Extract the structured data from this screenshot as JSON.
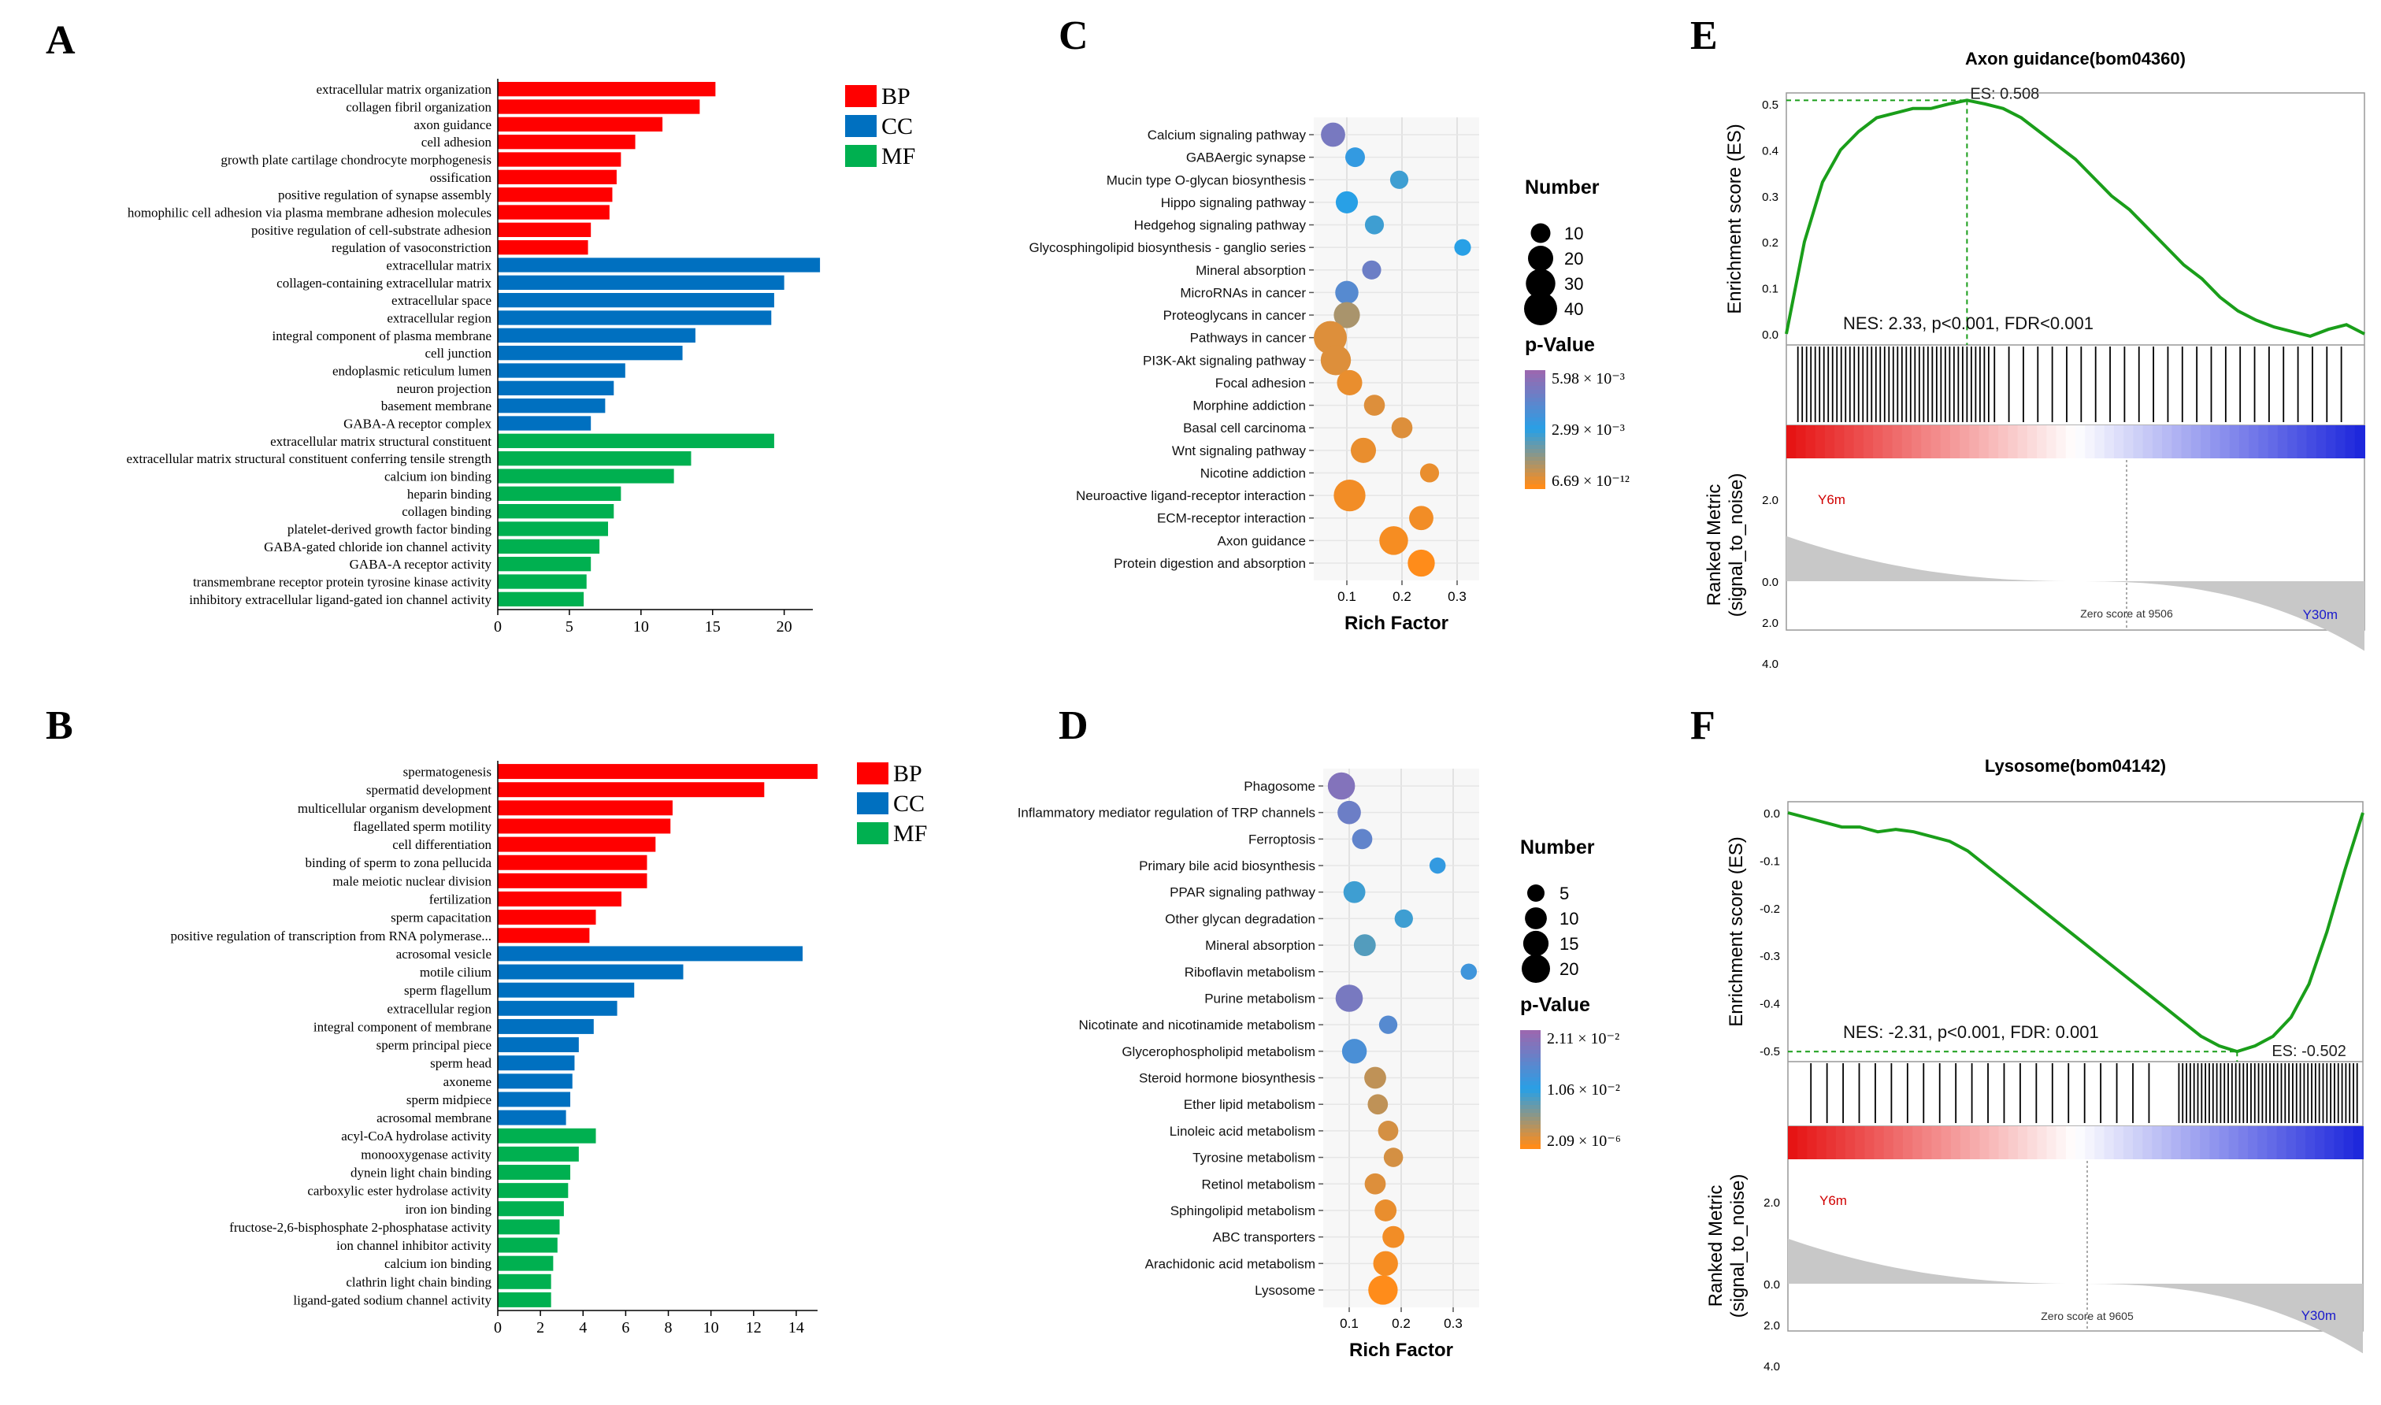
{
  "panels": {
    "A": "A",
    "B": "B",
    "C": "C",
    "D": "D",
    "E": "E",
    "F": "F"
  },
  "colors": {
    "BP": "#ff0000",
    "CC": "#0070c0",
    "MF": "#00b050",
    "gsea_line": "#1a9e1a",
    "gray": "#c8c8c8"
  },
  "legend_go": [
    {
      "key": "BP",
      "label": "BP"
    },
    {
      "key": "CC",
      "label": "CC"
    },
    {
      "key": "MF",
      "label": "MF"
    }
  ],
  "chart_data": [
    {
      "id": "A",
      "type": "bar",
      "orientation": "horizontal",
      "xlim": [
        0,
        22
      ],
      "xticks": [
        0,
        5,
        10,
        15,
        20
      ],
      "categories": [
        {
          "label": "extracellular matrix organization",
          "value": 15.2,
          "group": "BP"
        },
        {
          "label": "collagen fibril organization",
          "value": 14.1,
          "group": "BP"
        },
        {
          "label": "axon guidance",
          "value": 11.5,
          "group": "BP"
        },
        {
          "label": "cell adhesion",
          "value": 9.6,
          "group": "BP"
        },
        {
          "label": "growth plate cartilage chondrocyte morphogenesis",
          "value": 8.6,
          "group": "BP"
        },
        {
          "label": "ossification",
          "value": 8.3,
          "group": "BP"
        },
        {
          "label": "positive regulation of synapse assembly",
          "value": 8.0,
          "group": "BP"
        },
        {
          "label": "homophilic cell adhesion via plasma membrane adhesion molecules",
          "value": 7.8,
          "group": "BP"
        },
        {
          "label": "positive regulation of cell-substrate adhesion",
          "value": 6.5,
          "group": "BP"
        },
        {
          "label": "regulation of vasoconstriction",
          "value": 6.3,
          "group": "BP"
        },
        {
          "label": "extracellular matrix",
          "value": 22.5,
          "group": "CC"
        },
        {
          "label": "collagen-containing extracellular matrix",
          "value": 20.0,
          "group": "CC"
        },
        {
          "label": "extracellular space",
          "value": 19.3,
          "group": "CC"
        },
        {
          "label": "extracellular region",
          "value": 19.1,
          "group": "CC"
        },
        {
          "label": "integral component of plasma membrane",
          "value": 13.8,
          "group": "CC"
        },
        {
          "label": "cell junction",
          "value": 12.9,
          "group": "CC"
        },
        {
          "label": "endoplasmic reticulum lumen",
          "value": 8.9,
          "group": "CC"
        },
        {
          "label": "neuron projection",
          "value": 8.1,
          "group": "CC"
        },
        {
          "label": "basement membrane",
          "value": 7.5,
          "group": "CC"
        },
        {
          "label": "GABA-A receptor complex",
          "value": 6.5,
          "group": "CC"
        },
        {
          "label": "extracellular matrix structural constituent",
          "value": 19.3,
          "group": "MF"
        },
        {
          "label": "extracellular matrix structural constituent conferring tensile strength",
          "value": 13.5,
          "group": "MF"
        },
        {
          "label": "calcium ion binding",
          "value": 12.3,
          "group": "MF"
        },
        {
          "label": "heparin binding",
          "value": 8.6,
          "group": "MF"
        },
        {
          "label": "collagen binding",
          "value": 8.1,
          "group": "MF"
        },
        {
          "label": "platelet-derived growth factor binding",
          "value": 7.7,
          "group": "MF"
        },
        {
          "label": "GABA-gated chloride ion channel activity",
          "value": 7.1,
          "group": "MF"
        },
        {
          "label": "GABA-A receptor activity",
          "value": 6.5,
          "group": "MF"
        },
        {
          "label": "transmembrane receptor protein tyrosine kinase activity",
          "value": 6.2,
          "group": "MF"
        },
        {
          "label": "inhibitory extracellular ligand-gated ion channel activity",
          "value": 6.0,
          "group": "MF"
        }
      ]
    },
    {
      "id": "B",
      "type": "bar",
      "orientation": "horizontal",
      "xlim": [
        0,
        15
      ],
      "xticks": [
        0,
        2,
        4,
        6,
        8,
        10,
        12,
        14
      ],
      "categories": [
        {
          "label": "spermatogenesis",
          "value": 15.0,
          "group": "BP"
        },
        {
          "label": "spermatid development",
          "value": 12.5,
          "group": "BP"
        },
        {
          "label": "multicellular organism development",
          "value": 8.2,
          "group": "BP"
        },
        {
          "label": "flagellated sperm motility",
          "value": 8.1,
          "group": "BP"
        },
        {
          "label": "cell differentiation",
          "value": 7.4,
          "group": "BP"
        },
        {
          "label": "binding of sperm to zona pellucida",
          "value": 7.0,
          "group": "BP"
        },
        {
          "label": "male meiotic nuclear division",
          "value": 7.0,
          "group": "BP"
        },
        {
          "label": "fertilization",
          "value": 5.8,
          "group": "BP"
        },
        {
          "label": "sperm capacitation",
          "value": 4.6,
          "group": "BP"
        },
        {
          "label": "positive regulation of transcription from RNA polymerase...",
          "value": 4.3,
          "group": "BP"
        },
        {
          "label": "acrosomal vesicle",
          "value": 14.3,
          "group": "CC"
        },
        {
          "label": "motile cilium",
          "value": 8.7,
          "group": "CC"
        },
        {
          "label": "sperm flagellum",
          "value": 6.4,
          "group": "CC"
        },
        {
          "label": "extracellular region",
          "value": 5.6,
          "group": "CC"
        },
        {
          "label": "integral component of membrane",
          "value": 4.5,
          "group": "CC"
        },
        {
          "label": "sperm principal piece",
          "value": 3.8,
          "group": "CC"
        },
        {
          "label": "sperm head",
          "value": 3.6,
          "group": "CC"
        },
        {
          "label": "axoneme",
          "value": 3.5,
          "group": "CC"
        },
        {
          "label": "sperm midpiece",
          "value": 3.4,
          "group": "CC"
        },
        {
          "label": "acrosomal membrane",
          "value": 3.2,
          "group": "CC"
        },
        {
          "label": "acyl-CoA hydrolase activity",
          "value": 4.6,
          "group": "MF"
        },
        {
          "label": "monooxygenase activity",
          "value": 3.8,
          "group": "MF"
        },
        {
          "label": "dynein light chain binding",
          "value": 3.4,
          "group": "MF"
        },
        {
          "label": "carboxylic ester hydrolase activity",
          "value": 3.3,
          "group": "MF"
        },
        {
          "label": "iron ion binding",
          "value": 3.1,
          "group": "MF"
        },
        {
          "label": "fructose-2,6-bisphosphate 2-phosphatase activity",
          "value": 2.9,
          "group": "MF"
        },
        {
          "label": "ion channel inhibitor activity",
          "value": 2.8,
          "group": "MF"
        },
        {
          "label": "calcium ion binding",
          "value": 2.6,
          "group": "MF"
        },
        {
          "label": "clathrin light chain binding",
          "value": 2.5,
          "group": "MF"
        },
        {
          "label": "ligand-gated sodium channel activity",
          "value": 2.5,
          "group": "MF"
        }
      ]
    },
    {
      "id": "C",
      "type": "scatter",
      "xlabel": "Rich Factor",
      "xlim": [
        0.04,
        0.34
      ],
      "xticks": [
        0.1,
        0.2,
        0.3
      ],
      "size_title": "Number",
      "size_legend": [
        10,
        20,
        30,
        40
      ],
      "color_title": "p-Value",
      "color_ticks": [
        "5.98 × 10⁻³",
        "2.99 × 10⁻³",
        "6.69 × 10⁻¹²"
      ],
      "points": [
        {
          "label": "Calcium signaling pathway",
          "rich": 0.075,
          "number": 18,
          "pnorm": 0.15
        },
        {
          "label": "GABAergic synapse",
          "rich": 0.115,
          "number": 10,
          "pnorm": 0.45
        },
        {
          "label": "Mucin type O-glycan biosynthesis",
          "rich": 0.195,
          "number": 8,
          "pnorm": 0.55
        },
        {
          "label": "Hippo signaling pathway",
          "rich": 0.1,
          "number": 14,
          "pnorm": 0.5
        },
        {
          "label": "Hedgehog signaling pathway",
          "rich": 0.15,
          "number": 9,
          "pnorm": 0.55
        },
        {
          "label": "Glycosphingolipid biosynthesis - ganglio series",
          "rich": 0.31,
          "number": 6,
          "pnorm": 0.5
        },
        {
          "label": "Mineral absorption",
          "rich": 0.145,
          "number": 9,
          "pnorm": 0.2
        },
        {
          "label": "MicroRNAs in cancer",
          "rich": 0.1,
          "number": 16,
          "pnorm": 0.3
        },
        {
          "label": "Proteoglycans in cancer",
          "rich": 0.1,
          "number": 22,
          "pnorm": 0.8
        },
        {
          "label": "Pathways in cancer",
          "rich": 0.07,
          "number": 40,
          "pnorm": 0.92
        },
        {
          "label": "PI3K-Akt signaling pathway",
          "rich": 0.08,
          "number": 32,
          "pnorm": 0.92
        },
        {
          "label": "Focal adhesion",
          "rich": 0.105,
          "number": 20,
          "pnorm": 0.95
        },
        {
          "label": "Morphine addiction",
          "rich": 0.15,
          "number": 12,
          "pnorm": 0.92
        },
        {
          "label": "Basal cell carcinoma",
          "rich": 0.2,
          "number": 12,
          "pnorm": 0.92
        },
        {
          "label": "Wnt signaling pathway",
          "rich": 0.13,
          "number": 20,
          "pnorm": 0.95
        },
        {
          "label": "Nicotine addiction",
          "rich": 0.25,
          "number": 9,
          "pnorm": 0.95
        },
        {
          "label": "Neuroactive ligand-receptor interaction",
          "rich": 0.105,
          "number": 36,
          "pnorm": 0.97
        },
        {
          "label": "ECM-receptor interaction",
          "rich": 0.235,
          "number": 18,
          "pnorm": 0.97
        },
        {
          "label": "Axon guidance",
          "rich": 0.185,
          "number": 28,
          "pnorm": 0.98
        },
        {
          "label": "Protein digestion and absorption",
          "rich": 0.235,
          "number": 24,
          "pnorm": 1.0
        }
      ]
    },
    {
      "id": "D",
      "type": "scatter",
      "xlabel": "Rich Factor",
      "xlim": [
        0.05,
        0.35
      ],
      "xticks": [
        0.1,
        0.2,
        0.3
      ],
      "size_title": "Number",
      "size_legend": [
        5,
        10,
        15,
        20
      ],
      "color_title": "p-Value",
      "color_ticks": [
        "2.11 × 10⁻²",
        "1.06 × 10⁻²",
        "2.09 × 10⁻⁶"
      ],
      "points": [
        {
          "label": "Phagosome",
          "rich": 0.085,
          "number": 18,
          "pnorm": 0.1
        },
        {
          "label": "Inflammatory mediator regulation of TRP channels",
          "rich": 0.1,
          "number": 12,
          "pnorm": 0.2
        },
        {
          "label": "Ferroptosis",
          "rich": 0.125,
          "number": 8,
          "pnorm": 0.25
        },
        {
          "label": "Primary bile acid biosynthesis",
          "rich": 0.27,
          "number": 4,
          "pnorm": 0.45
        },
        {
          "label": "PPAR signaling pathway",
          "rich": 0.11,
          "number": 10,
          "pnorm": 0.55
        },
        {
          "label": "Other glycan degradation",
          "rich": 0.205,
          "number": 6,
          "pnorm": 0.55
        },
        {
          "label": "Mineral absorption",
          "rich": 0.13,
          "number": 10,
          "pnorm": 0.6
        },
        {
          "label": "Riboflavin metabolism",
          "rich": 0.33,
          "number": 4,
          "pnorm": 0.4
        },
        {
          "label": "Purine metabolism",
          "rich": 0.1,
          "number": 18,
          "pnorm": 0.15
        },
        {
          "label": "Nicotinate and nicotinamide metabolism",
          "rich": 0.175,
          "number": 6,
          "pnorm": 0.3
        },
        {
          "label": "Glycerophospholipid metabolism",
          "rich": 0.11,
          "number": 14,
          "pnorm": 0.35
        },
        {
          "label": "Steroid hormone biosynthesis",
          "rich": 0.15,
          "number": 10,
          "pnorm": 0.85
        },
        {
          "label": "Ether lipid metabolism",
          "rich": 0.155,
          "number": 8,
          "pnorm": 0.85
        },
        {
          "label": "Linoleic acid metabolism",
          "rich": 0.175,
          "number": 8,
          "pnorm": 0.9
        },
        {
          "label": "Tyrosine metabolism",
          "rich": 0.185,
          "number": 7,
          "pnorm": 0.9
        },
        {
          "label": "Retinol metabolism",
          "rich": 0.15,
          "number": 9,
          "pnorm": 0.92
        },
        {
          "label": "Sphingolipid metabolism",
          "rich": 0.17,
          "number": 10,
          "pnorm": 0.95
        },
        {
          "label": "ABC transporters",
          "rich": 0.185,
          "number": 10,
          "pnorm": 0.97
        },
        {
          "label": "Arachidonic acid metabolism",
          "rich": 0.17,
          "number": 14,
          "pnorm": 0.98
        },
        {
          "label": "Lysosome",
          "rich": 0.165,
          "number": 22,
          "pnorm": 1.0
        }
      ]
    },
    {
      "id": "E",
      "type": "line",
      "title": "Axon guidance(bom04360)",
      "ylabel": "Enrichment score (ES)",
      "ylabel2a": "Ranked Metric",
      "ylabel2b": "(signal_to_noise)",
      "yticks": [
        "0.5",
        "0.4",
        "0.3",
        "0.2",
        "0.1",
        "0.0"
      ],
      "es_label": "ES: 0.508",
      "stats": "NES: 2.33, p<0.001, FDR<0.001",
      "left_label": "Y6m",
      "right_label": "Y30m",
      "zero_label": "Zero score at 9506",
      "metric_ticks": [
        "2.0",
        "0.0",
        "2.0",
        "4.0"
      ],
      "es_values": [
        0.0,
        0.2,
        0.33,
        0.4,
        0.44,
        0.47,
        0.48,
        0.49,
        0.49,
        0.5,
        0.508,
        0.5,
        0.49,
        0.47,
        0.44,
        0.41,
        0.38,
        0.34,
        0.3,
        0.27,
        0.23,
        0.19,
        0.15,
        0.12,
        0.08,
        0.05,
        0.03,
        0.015,
        0.005,
        -0.005,
        0.01,
        0.02,
        0.0
      ]
    },
    {
      "id": "F",
      "type": "line",
      "title": "Lysosome(bom04142)",
      "ylabel": "Enrichment score (ES)",
      "ylabel2a": "Ranked Metric",
      "ylabel2b": "(signal_to_noise)",
      "yticks": [
        "0.0",
        "-0.1",
        "-0.2",
        "-0.3",
        "-0.4",
        "-0.5"
      ],
      "es_label": "ES: -0.502",
      "stats": "NES: -2.31, p<0.001, FDR: 0.001",
      "left_label": "Y6m",
      "right_label": "Y30m",
      "zero_label": "Zero score at 9605",
      "metric_ticks": [
        "2.0",
        "0.0",
        "2.0",
        "4.0"
      ],
      "es_values": [
        0.0,
        -0.01,
        -0.02,
        -0.03,
        -0.03,
        -0.04,
        -0.035,
        -0.04,
        -0.05,
        -0.06,
        -0.08,
        -0.11,
        -0.14,
        -0.17,
        -0.2,
        -0.23,
        -0.26,
        -0.29,
        -0.32,
        -0.35,
        -0.38,
        -0.41,
        -0.44,
        -0.47,
        -0.49,
        -0.502,
        -0.49,
        -0.47,
        -0.43,
        -0.36,
        -0.25,
        -0.12,
        0.0
      ]
    }
  ]
}
